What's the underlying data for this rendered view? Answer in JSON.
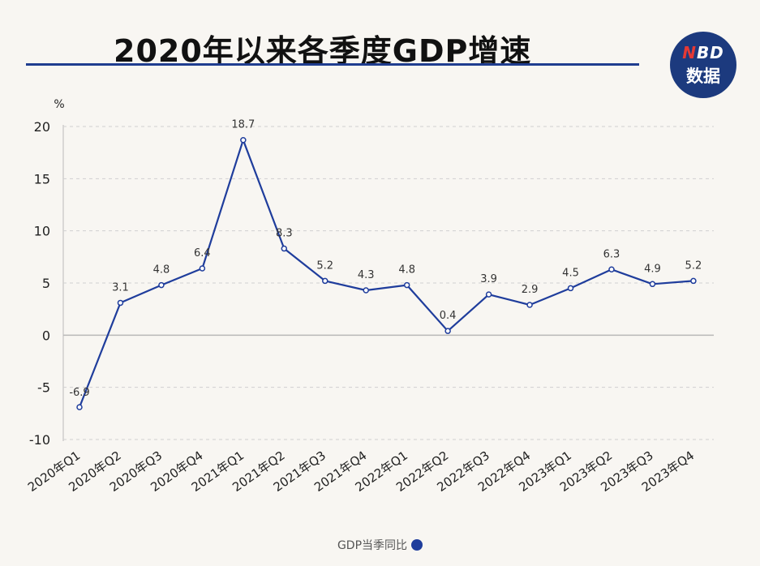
{
  "title": "2020年以来各季度GDP增速",
  "logo": {
    "top_n": "N",
    "top_rest": "BD",
    "bottom": "数据"
  },
  "chart_data": {
    "type": "line",
    "title": "2020年以来各季度GDP增速",
    "ylabel": "%",
    "xlabel": "",
    "ylim": [
      -10,
      20
    ],
    "yticks": [
      20,
      15,
      10,
      5,
      0,
      -5,
      -10
    ],
    "grid": true,
    "legend_position": "bottom",
    "categories": [
      "2020年Q1",
      "2020年Q2",
      "2020年Q3",
      "2020年Q4",
      "2021年Q1",
      "2021年Q2",
      "2021年Q3",
      "2021年Q4",
      "2022年Q1",
      "2022年Q2",
      "2022年Q3",
      "2022年Q4",
      "2023年Q1",
      "2023年Q2",
      "2023年Q3",
      "2023年Q4"
    ],
    "series": [
      {
        "name": "GDP当季同比",
        "color": "#1f3d9c",
        "values": [
          -6.9,
          3.1,
          4.8,
          6.4,
          18.7,
          8.3,
          5.2,
          4.3,
          4.8,
          0.4,
          3.9,
          2.9,
          4.5,
          6.3,
          4.9,
          5.2
        ]
      }
    ]
  }
}
